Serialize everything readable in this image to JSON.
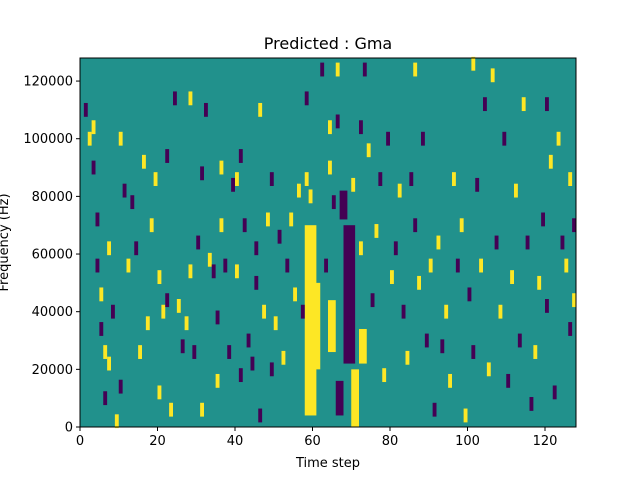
{
  "chart_data": {
    "type": "heatmap",
    "title": "Predicted : Gma",
    "xlabel": "Time step",
    "ylabel": "Frequency (Hz)",
    "xlim": [
      0,
      128
    ],
    "ylim": [
      0,
      128000
    ],
    "x_ticks": [
      0,
      20,
      40,
      60,
      80,
      100,
      120
    ],
    "y_ticks": [
      0,
      20000,
      40000,
      60000,
      80000,
      100000,
      120000
    ],
    "x_tick_labels": [
      "0",
      "20",
      "40",
      "60",
      "80",
      "100",
      "120"
    ],
    "y_tick_labels": [
      "0",
      "20000",
      "40000",
      "60000",
      "80000",
      "100000",
      "120000"
    ],
    "grid": false,
    "colormap": "viridis",
    "colors": {
      "background_value": "#21918c",
      "high_value": "#fde725",
      "low_value": "#440154"
    },
    "bands": [
      {
        "value": "high",
        "x_start": 58,
        "x_end": 61,
        "y_start": 4000,
        "y_end": 70000
      },
      {
        "value": "high",
        "x_start": 60,
        "x_end": 62,
        "y_start": 20000,
        "y_end": 50000
      },
      {
        "value": "low",
        "x_start": 68,
        "x_end": 71,
        "y_start": 22000,
        "y_end": 70000
      },
      {
        "value": "low",
        "x_start": 67,
        "x_end": 69,
        "y_start": 72000,
        "y_end": 82000
      },
      {
        "value": "high",
        "x_start": 64,
        "x_end": 66,
        "y_start": 26000,
        "y_end": 44000
      },
      {
        "value": "low",
        "x_start": 66,
        "x_end": 68,
        "y_start": 4000,
        "y_end": 16000
      },
      {
        "value": "high",
        "x_start": 70,
        "x_end": 72,
        "y_start": 0,
        "y_end": 20000
      },
      {
        "value": "high",
        "x_start": 72,
        "x_end": 74,
        "y_start": 22000,
        "y_end": 34000
      }
    ],
    "cells": [
      {
        "x": 1,
        "y": 110000,
        "value": "low"
      },
      {
        "x": 2,
        "y": 100000,
        "value": "high"
      },
      {
        "x": 3,
        "y": 104000,
        "value": "high"
      },
      {
        "x": 3,
        "y": 90000,
        "value": "low"
      },
      {
        "x": 4,
        "y": 72000,
        "value": "low"
      },
      {
        "x": 4,
        "y": 56000,
        "value": "low"
      },
      {
        "x": 5,
        "y": 46000,
        "value": "high"
      },
      {
        "x": 5,
        "y": 34000,
        "value": "low"
      },
      {
        "x": 6,
        "y": 26000,
        "value": "high"
      },
      {
        "x": 6,
        "y": 10000,
        "value": "low"
      },
      {
        "x": 7,
        "y": 62000,
        "value": "high"
      },
      {
        "x": 7,
        "y": 22000,
        "value": "high"
      },
      {
        "x": 8,
        "y": 40000,
        "value": "low"
      },
      {
        "x": 9,
        "y": 2000,
        "value": "high"
      },
      {
        "x": 10,
        "y": 100000,
        "value": "high"
      },
      {
        "x": 10,
        "y": 14000,
        "value": "low"
      },
      {
        "x": 11,
        "y": 82000,
        "value": "low"
      },
      {
        "x": 12,
        "y": 56000,
        "value": "high"
      },
      {
        "x": 13,
        "y": 78000,
        "value": "low"
      },
      {
        "x": 14,
        "y": 62000,
        "value": "low"
      },
      {
        "x": 15,
        "y": 26000,
        "value": "high"
      },
      {
        "x": 16,
        "y": 92000,
        "value": "high"
      },
      {
        "x": 17,
        "y": 36000,
        "value": "high"
      },
      {
        "x": 18,
        "y": 70000,
        "value": "high"
      },
      {
        "x": 19,
        "y": 86000,
        "value": "high"
      },
      {
        "x": 20,
        "y": 52000,
        "value": "high"
      },
      {
        "x": 20,
        "y": 12000,
        "value": "high"
      },
      {
        "x": 21,
        "y": 40000,
        "value": "high"
      },
      {
        "x": 22,
        "y": 94000,
        "value": "low"
      },
      {
        "x": 22,
        "y": 44000,
        "value": "low"
      },
      {
        "x": 23,
        "y": 6000,
        "value": "high"
      },
      {
        "x": 24,
        "y": 114000,
        "value": "low"
      },
      {
        "x": 25,
        "y": 42000,
        "value": "high"
      },
      {
        "x": 26,
        "y": 28000,
        "value": "low"
      },
      {
        "x": 27,
        "y": 36000,
        "value": "high"
      },
      {
        "x": 28,
        "y": 114000,
        "value": "high"
      },
      {
        "x": 28,
        "y": 54000,
        "value": "high"
      },
      {
        "x": 29,
        "y": 26000,
        "value": "low"
      },
      {
        "x": 30,
        "y": 64000,
        "value": "low"
      },
      {
        "x": 31,
        "y": 88000,
        "value": "low"
      },
      {
        "x": 31,
        "y": 6000,
        "value": "high"
      },
      {
        "x": 32,
        "y": 110000,
        "value": "low"
      },
      {
        "x": 33,
        "y": 58000,
        "value": "high"
      },
      {
        "x": 34,
        "y": 54000,
        "value": "low"
      },
      {
        "x": 35,
        "y": 16000,
        "value": "high"
      },
      {
        "x": 35,
        "y": 38000,
        "value": "low"
      },
      {
        "x": 36,
        "y": 70000,
        "value": "high"
      },
      {
        "x": 36,
        "y": 90000,
        "value": "high"
      },
      {
        "x": 37,
        "y": 56000,
        "value": "low"
      },
      {
        "x": 38,
        "y": 26000,
        "value": "low"
      },
      {
        "x": 39,
        "y": 84000,
        "value": "low"
      },
      {
        "x": 40,
        "y": 54000,
        "value": "high"
      },
      {
        "x": 40,
        "y": 86000,
        "value": "high"
      },
      {
        "x": 41,
        "y": 18000,
        "value": "low"
      },
      {
        "x": 41,
        "y": 94000,
        "value": "low"
      },
      {
        "x": 42,
        "y": 70000,
        "value": "low"
      },
      {
        "x": 43,
        "y": 30000,
        "value": "low"
      },
      {
        "x": 44,
        "y": 22000,
        "value": "low"
      },
      {
        "x": 45,
        "y": 50000,
        "value": "low"
      },
      {
        "x": 45,
        "y": 62000,
        "value": "low"
      },
      {
        "x": 46,
        "y": 110000,
        "value": "high"
      },
      {
        "x": 46,
        "y": 4000,
        "value": "low"
      },
      {
        "x": 47,
        "y": 40000,
        "value": "high"
      },
      {
        "x": 48,
        "y": 72000,
        "value": "high"
      },
      {
        "x": 49,
        "y": 86000,
        "value": "low"
      },
      {
        "x": 49,
        "y": 20000,
        "value": "low"
      },
      {
        "x": 50,
        "y": 36000,
        "value": "high"
      },
      {
        "x": 51,
        "y": 66000,
        "value": "low"
      },
      {
        "x": 52,
        "y": 24000,
        "value": "high"
      },
      {
        "x": 53,
        "y": 56000,
        "value": "low"
      },
      {
        "x": 54,
        "y": 72000,
        "value": "high"
      },
      {
        "x": 55,
        "y": 46000,
        "value": "high"
      },
      {
        "x": 56,
        "y": 82000,
        "value": "high"
      },
      {
        "x": 57,
        "y": 40000,
        "value": "low"
      },
      {
        "x": 58,
        "y": 86000,
        "value": "high"
      },
      {
        "x": 58,
        "y": 114000,
        "value": "low"
      },
      {
        "x": 59,
        "y": 80000,
        "value": "high"
      },
      {
        "x": 62,
        "y": 124000,
        "value": "low"
      },
      {
        "x": 63,
        "y": 56000,
        "value": "low"
      },
      {
        "x": 64,
        "y": 90000,
        "value": "high"
      },
      {
        "x": 64,
        "y": 104000,
        "value": "high"
      },
      {
        "x": 65,
        "y": 78000,
        "value": "low"
      },
      {
        "x": 66,
        "y": 124000,
        "value": "high"
      },
      {
        "x": 66,
        "y": 106000,
        "value": "low"
      },
      {
        "x": 69,
        "y": 36000,
        "value": "low"
      },
      {
        "x": 70,
        "y": 84000,
        "value": "high"
      },
      {
        "x": 72,
        "y": 62000,
        "value": "high"
      },
      {
        "x": 72,
        "y": 104000,
        "value": "low"
      },
      {
        "x": 73,
        "y": 124000,
        "value": "low"
      },
      {
        "x": 74,
        "y": 96000,
        "value": "high"
      },
      {
        "x": 75,
        "y": 44000,
        "value": "low"
      },
      {
        "x": 76,
        "y": 68000,
        "value": "high"
      },
      {
        "x": 77,
        "y": 86000,
        "value": "low"
      },
      {
        "x": 78,
        "y": 18000,
        "value": "high"
      },
      {
        "x": 79,
        "y": 100000,
        "value": "low"
      },
      {
        "x": 80,
        "y": 52000,
        "value": "high"
      },
      {
        "x": 81,
        "y": 62000,
        "value": "low"
      },
      {
        "x": 82,
        "y": 82000,
        "value": "high"
      },
      {
        "x": 83,
        "y": 40000,
        "value": "low"
      },
      {
        "x": 84,
        "y": 24000,
        "value": "high"
      },
      {
        "x": 85,
        "y": 86000,
        "value": "low"
      },
      {
        "x": 86,
        "y": 124000,
        "value": "high"
      },
      {
        "x": 86,
        "y": 70000,
        "value": "low"
      },
      {
        "x": 87,
        "y": 50000,
        "value": "high"
      },
      {
        "x": 88,
        "y": 100000,
        "value": "low"
      },
      {
        "x": 89,
        "y": 30000,
        "value": "low"
      },
      {
        "x": 90,
        "y": 56000,
        "value": "high"
      },
      {
        "x": 91,
        "y": 6000,
        "value": "low"
      },
      {
        "x": 92,
        "y": 64000,
        "value": "high"
      },
      {
        "x": 93,
        "y": 28000,
        "value": "low"
      },
      {
        "x": 94,
        "y": 40000,
        "value": "high"
      },
      {
        "x": 95,
        "y": 16000,
        "value": "high"
      },
      {
        "x": 96,
        "y": 86000,
        "value": "high"
      },
      {
        "x": 97,
        "y": 56000,
        "value": "low"
      },
      {
        "x": 98,
        "y": 70000,
        "value": "high"
      },
      {
        "x": 99,
        "y": 4000,
        "value": "high"
      },
      {
        "x": 100,
        "y": 46000,
        "value": "low"
      },
      {
        "x": 101,
        "y": 126000,
        "value": "high"
      },
      {
        "x": 101,
        "y": 26000,
        "value": "low"
      },
      {
        "x": 102,
        "y": 84000,
        "value": "low"
      },
      {
        "x": 103,
        "y": 56000,
        "value": "high"
      },
      {
        "x": 104,
        "y": 112000,
        "value": "low"
      },
      {
        "x": 105,
        "y": 20000,
        "value": "high"
      },
      {
        "x": 106,
        "y": 122000,
        "value": "high"
      },
      {
        "x": 107,
        "y": 64000,
        "value": "low"
      },
      {
        "x": 108,
        "y": 40000,
        "value": "high"
      },
      {
        "x": 109,
        "y": 100000,
        "value": "low"
      },
      {
        "x": 110,
        "y": 16000,
        "value": "low"
      },
      {
        "x": 111,
        "y": 52000,
        "value": "high"
      },
      {
        "x": 112,
        "y": 82000,
        "value": "high"
      },
      {
        "x": 113,
        "y": 30000,
        "value": "low"
      },
      {
        "x": 114,
        "y": 112000,
        "value": "high"
      },
      {
        "x": 115,
        "y": 64000,
        "value": "low"
      },
      {
        "x": 116,
        "y": 8000,
        "value": "low"
      },
      {
        "x": 117,
        "y": 26000,
        "value": "high"
      },
      {
        "x": 118,
        "y": 50000,
        "value": "high"
      },
      {
        "x": 119,
        "y": 72000,
        "value": "low"
      },
      {
        "x": 120,
        "y": 112000,
        "value": "low"
      },
      {
        "x": 120,
        "y": 42000,
        "value": "low"
      },
      {
        "x": 121,
        "y": 92000,
        "value": "high"
      },
      {
        "x": 122,
        "y": 12000,
        "value": "low"
      },
      {
        "x": 123,
        "y": 100000,
        "value": "high"
      },
      {
        "x": 124,
        "y": 64000,
        "value": "low"
      },
      {
        "x": 125,
        "y": 56000,
        "value": "high"
      },
      {
        "x": 126,
        "y": 34000,
        "value": "low"
      },
      {
        "x": 126,
        "y": 86000,
        "value": "high"
      },
      {
        "x": 127,
        "y": 44000,
        "value": "high"
      },
      {
        "x": 127,
        "y": 70000,
        "value": "low"
      }
    ]
  }
}
